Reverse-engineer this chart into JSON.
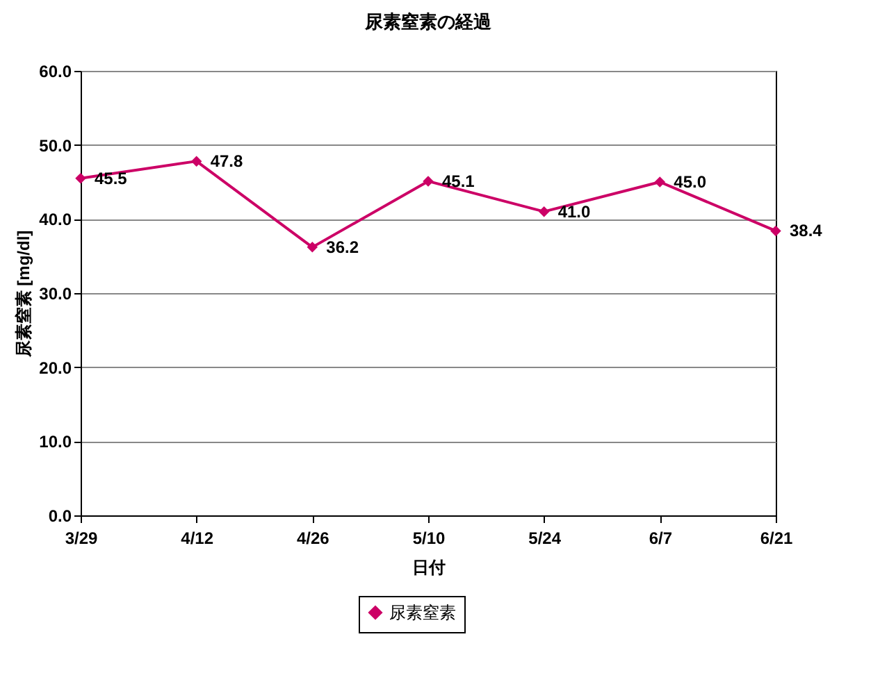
{
  "chart_data": {
    "type": "line",
    "title": "尿素窒素の経過",
    "xlabel": "日付",
    "ylabel": "尿素窒素 [mg/dl]",
    "categories": [
      "3/29",
      "4/12",
      "4/26",
      "5/10",
      "5/24",
      "6/7",
      "6/21"
    ],
    "series": [
      {
        "name": "尿素窒素",
        "color": "#cc0066",
        "values": [
          45.5,
          47.8,
          36.2,
          45.1,
          41.0,
          45.0,
          38.4
        ],
        "value_labels": [
          "45.5",
          "47.8",
          "36.2",
          "45.1",
          "41.0",
          "45.0",
          "38.4"
        ]
      }
    ],
    "ylim": [
      0,
      60
    ],
    "yticks": [
      {
        "value": 0,
        "label": "0.0"
      },
      {
        "value": 10,
        "label": "10.0"
      },
      {
        "value": 20,
        "label": "20.0"
      },
      {
        "value": 30,
        "label": "30.0"
      },
      {
        "value": 40,
        "label": "40.0"
      },
      {
        "value": 50,
        "label": "50.0"
      },
      {
        "value": 60,
        "label": "60.0"
      }
    ],
    "grid": "y",
    "legend": "bottom",
    "marker": "diamond",
    "line_style": "solid"
  }
}
